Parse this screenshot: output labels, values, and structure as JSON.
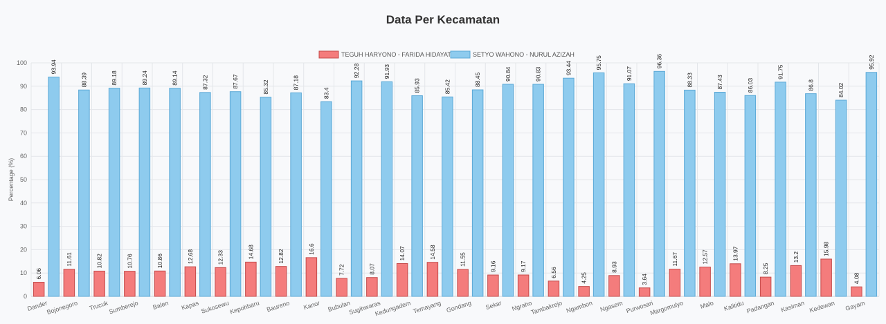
{
  "chart_data": {
    "type": "bar",
    "title": "Data Per Kecamatan",
    "ylabel": "Percentage (%)",
    "xlabel": "",
    "ylim": [
      0,
      100
    ],
    "yticks": [
      0,
      10,
      20,
      30,
      40,
      50,
      60,
      70,
      80,
      90,
      100
    ],
    "grid": true,
    "legend_position": "top",
    "categories": [
      "Dander",
      "Bojonegoro",
      "Trucuk",
      "Sumberejo",
      "Balen",
      "Kapas",
      "Sukosewu",
      "Kepohbaru",
      "Baureno",
      "Kanor",
      "Bubulan",
      "Sugihwaras",
      "Kedungadem",
      "Temayang",
      "Gondang",
      "Sekar",
      "Ngraho",
      "Tambakrejo",
      "Ngambon",
      "Ngasem",
      "Purwosari",
      "Margomulyo",
      "Malo",
      "Kalitidu",
      "Padangan",
      "Kasiman",
      "Kedewan",
      "Gayam"
    ],
    "series": [
      {
        "name": "TEGUH HARYONO - FARIDA HIDAYATI",
        "color": "#f47c7c",
        "border": "#c44a4a",
        "values": [
          6.06,
          11.61,
          10.82,
          10.76,
          10.86,
          12.68,
          12.33,
          14.68,
          12.82,
          16.6,
          7.72,
          8.07,
          14.07,
          14.58,
          11.55,
          9.16,
          9.17,
          6.56,
          4.25,
          8.93,
          3.64,
          11.67,
          12.57,
          13.97,
          8.25,
          13.2,
          15.98,
          4.08
        ],
        "labels": [
          "6.06",
          "11.61",
          "10.82",
          "10.76",
          "10.86",
          "12.68",
          "12.33",
          "14.68",
          "12.82",
          "16.6",
          "7.72",
          "8.07",
          "14.07",
          "14.58",
          "11.55",
          "9.16",
          "9.17",
          "6.56",
          "4.25",
          "8.93",
          "3.64",
          "11.67",
          "12.57",
          "13.97",
          "8.25",
          "13.2",
          "15.98",
          "4.08"
        ]
      },
      {
        "name": "SETYO WAHONO - NURUL AZIZAH",
        "color": "#8ecbee",
        "border": "#5aa8d6",
        "values": [
          93.94,
          88.39,
          89.18,
          89.24,
          89.14,
          87.32,
          87.67,
          85.32,
          87.18,
          83.4,
          92.28,
          91.93,
          85.93,
          85.42,
          88.45,
          90.84,
          90.83,
          93.44,
          95.75,
          91.07,
          96.36,
          88.33,
          87.43,
          86.03,
          91.75,
          86.8,
          84.02,
          95.92
        ],
        "labels": [
          "93.94",
          "88.39",
          "89.18",
          "89.24",
          "89.14",
          "87.32",
          "87.67",
          "85.32",
          "87.18",
          "83.4",
          "92.28",
          "91.93",
          "85.93",
          "85.42",
          "88.45",
          "90.84",
          "90.83",
          "93.44",
          "95.75",
          "91.07",
          "96.36",
          "88.33",
          "87.43",
          "86.03",
          "91.75",
          "86.8",
          "84.02",
          "95.92"
        ]
      }
    ]
  }
}
